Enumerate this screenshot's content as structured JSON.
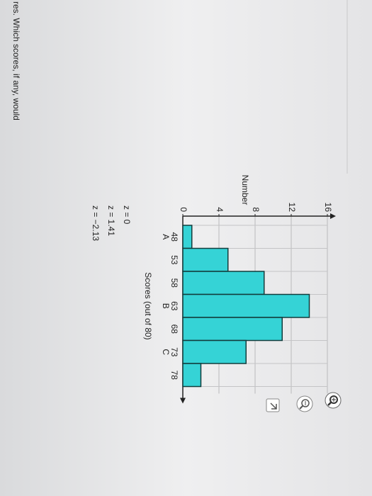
{
  "question": {
    "text": "res. Which scores, if any, would"
  },
  "chart_data": {
    "type": "bar",
    "x_label": "Scores (out of 80)",
    "y_label": "Number",
    "categories": [
      "48",
      "53",
      "58",
      "63",
      "68",
      "73",
      "78"
    ],
    "values": [
      1,
      5,
      9,
      14,
      11,
      7,
      2
    ],
    "color": "#35d3d6",
    "ylim": [
      0,
      16
    ],
    "yticks": [
      0,
      4,
      8,
      12,
      16
    ],
    "grid": true,
    "markers": [
      {
        "label": "A",
        "x": 48
      },
      {
        "label": "B",
        "x": 63
      },
      {
        "label": "C",
        "x": 73
      }
    ]
  },
  "z_scores": [
    "z = 0",
    "z = 1.41",
    "z = −2.13"
  ]
}
